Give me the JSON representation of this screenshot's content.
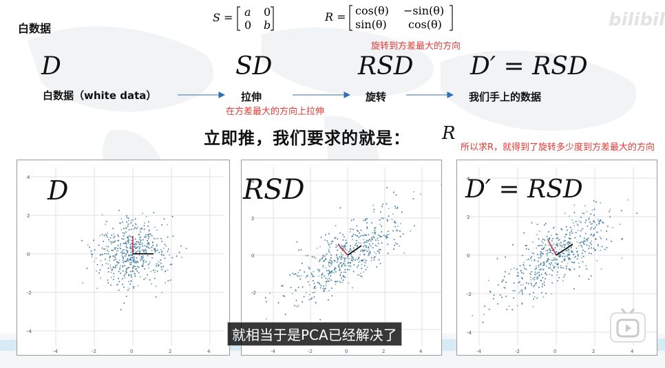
{
  "header": {
    "white_data": "白数据",
    "s_formula": {
      "lhs": "S =",
      "m11": "a",
      "m12": "0",
      "m21": "0",
      "m22": "b"
    },
    "r_formula": {
      "lhs": "R =",
      "m11": "cos(θ)",
      "m12": "−sin(θ)",
      "m21": "sin(θ)",
      "m22": "cos(θ)"
    },
    "rotate_note": "旋转到方差最大的方向"
  },
  "pipeline": {
    "stages": [
      {
        "math": "D",
        "label": "白数据（white data）"
      },
      {
        "math": "SD",
        "label": "拉伸"
      },
      {
        "math": "RSD",
        "label": "旋转"
      },
      {
        "math": "D′ = RSD",
        "label": "我们手上的数据"
      }
    ],
    "stretch_note": "在方差最大的方向上拉伸"
  },
  "conclusion": {
    "text": "立即推，我们要求的就是：",
    "symbol": "R",
    "note": "所以求R，就得到了旋转多少度到方差最大的方向"
  },
  "plots": [
    {
      "title": "D"
    },
    {
      "title": "RSD"
    },
    {
      "title": "D′ = RSD"
    }
  ],
  "axis_ticks": {
    "x": [
      "-4",
      "-2",
      "0",
      "2",
      "4"
    ],
    "y": [
      "4",
      "2",
      "0",
      "-2",
      "-4"
    ]
  },
  "subtitle": "就相当于是PCA已经解决了",
  "watermark": "bilibili",
  "colors": {
    "accent_red": "#e53935",
    "arrow_blue": "#2f6fb3",
    "point_blue": "#4c7fa8",
    "vector_red": "#c23b5a"
  }
}
